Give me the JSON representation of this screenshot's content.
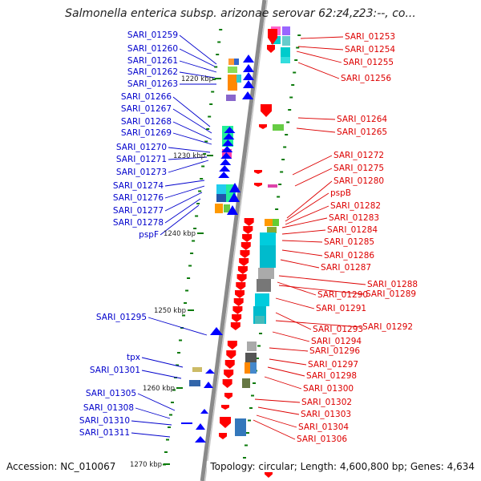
{
  "title": "Salmonella enterica subsp. arizonae serovar 62:z4,z23:--, co...",
  "accession": "Accession: NC_010067",
  "topology": "Topology: circular; Length: 4,600,800 bp; Genes: 4,634",
  "colors": {
    "left_label": "#0000cc",
    "right_label": "#dd0000",
    "minus_strand_feature": "#0000ff",
    "plus_strand_feature": "#ff0000",
    "backbone": "#8a8a8a",
    "tick_mark": "#0a7a0a"
  },
  "ticks": [
    "1220 kbp",
    "1230 kbp",
    "1240 kbp",
    "1250 kbp",
    "1260 kbp",
    "1270 kbp"
  ],
  "left_labels": [
    "SARI_01259",
    "SARI_01260",
    "SARI_01261",
    "SARI_01262",
    "SARI_01263",
    "SARI_01266",
    "SARI_01267",
    "SARI_01268",
    "SARI_01269",
    "SARI_01270",
    "SARI_01271",
    "SARI_01273",
    "SARI_01274",
    "SARI_01276",
    "SARI_01277",
    "SARI_01278",
    "pspF",
    "SARI_01295",
    "tpx",
    "SARI_01301",
    "SARI_01305",
    "SARI_01308",
    "SARI_01310",
    "SARI_01311"
  ],
  "right_labels": [
    "SARI_01253",
    "SARI_01254",
    "SARI_01255",
    "SARI_01256",
    "SARI_01264",
    "SARI_01265",
    "SARI_01272",
    "SARI_01275",
    "SARI_01280",
    "pspB",
    "SARI_01282",
    "SARI_01283",
    "SARI_01284",
    "SARI_01285",
    "SARI_01286",
    "SARI_01287",
    "SARI_01288",
    "SARI_01290",
    "SARI_01289",
    "SARI_01291",
    "SARI_01293",
    "SARI_01292",
    "SARI_01294",
    "SARI_01296",
    "SARI_01297",
    "SARI_01298",
    "SARI_01300",
    "SARI_01302",
    "SARI_01303",
    "SARI_01304",
    "SARI_01306"
  ]
}
